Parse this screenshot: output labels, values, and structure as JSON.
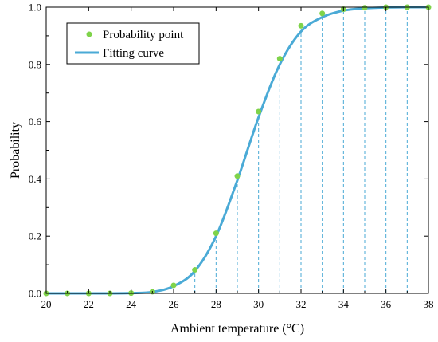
{
  "chart_data": {
    "type": "line",
    "xlabel": "Ambient temperature (°C)",
    "ylabel": "Probability",
    "xlim": [
      20,
      38
    ],
    "ylim": [
      0,
      1.0
    ],
    "x_ticks": [
      "20",
      "22",
      "24",
      "26",
      "28",
      "30",
      "32",
      "34",
      "36",
      "38"
    ],
    "y_ticks": [
      "0.0",
      "0.2",
      "0.4",
      "0.6",
      "0.8",
      "1.0"
    ],
    "grid": false,
    "legend_position": "top-left",
    "series": [
      {
        "name": "Probability point",
        "kind": "scatter",
        "color": "#7fd34a",
        "x": [
          20,
          21,
          22,
          23,
          24,
          25,
          26,
          27,
          28,
          29,
          30,
          31,
          32,
          33,
          34,
          35,
          36,
          37,
          38
        ],
        "y": [
          0.0,
          0.0,
          0.0,
          0.0,
          0.001,
          0.006,
          0.028,
          0.082,
          0.21,
          0.41,
          0.635,
          0.82,
          0.935,
          0.978,
          0.993,
          0.998,
          1.0,
          1.0,
          1.0
        ]
      },
      {
        "name": "Fitting curve",
        "kind": "line",
        "color": "#4aaad6",
        "x": [
          20,
          21,
          22,
          23,
          24,
          25,
          26,
          27,
          28,
          29,
          30,
          31,
          32,
          33,
          34,
          35,
          36,
          37,
          38
        ],
        "y": [
          0.0,
          0.0,
          0.0,
          0.0,
          0.001,
          0.005,
          0.025,
          0.078,
          0.2,
          0.395,
          0.615,
          0.8,
          0.915,
          0.965,
          0.988,
          0.996,
          0.999,
          1.0,
          1.0
        ]
      }
    ],
    "reference_lines": {
      "style": "dashed",
      "color": "#4aaad6",
      "x": [
        27,
        28,
        29,
        30,
        31,
        32,
        33,
        34,
        35,
        36,
        37,
        38
      ]
    }
  }
}
